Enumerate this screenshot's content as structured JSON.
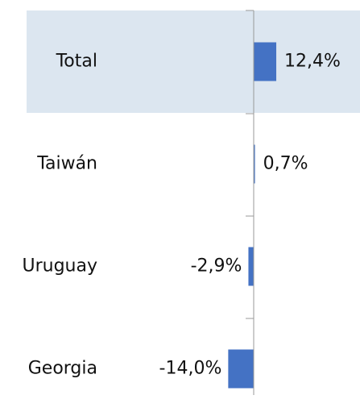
{
  "chart_data": {
    "type": "bar",
    "orientation": "horizontal",
    "categories": [
      "Total",
      "Taiwán",
      "Uruguay",
      "Georgia"
    ],
    "values": [
      12.4,
      0.7,
      -2.9,
      -14.0
    ],
    "value_labels": [
      "12,4%",
      "0,7%",
      "-2,9%",
      "-14,0%"
    ],
    "color": "#4472c4"
  }
}
